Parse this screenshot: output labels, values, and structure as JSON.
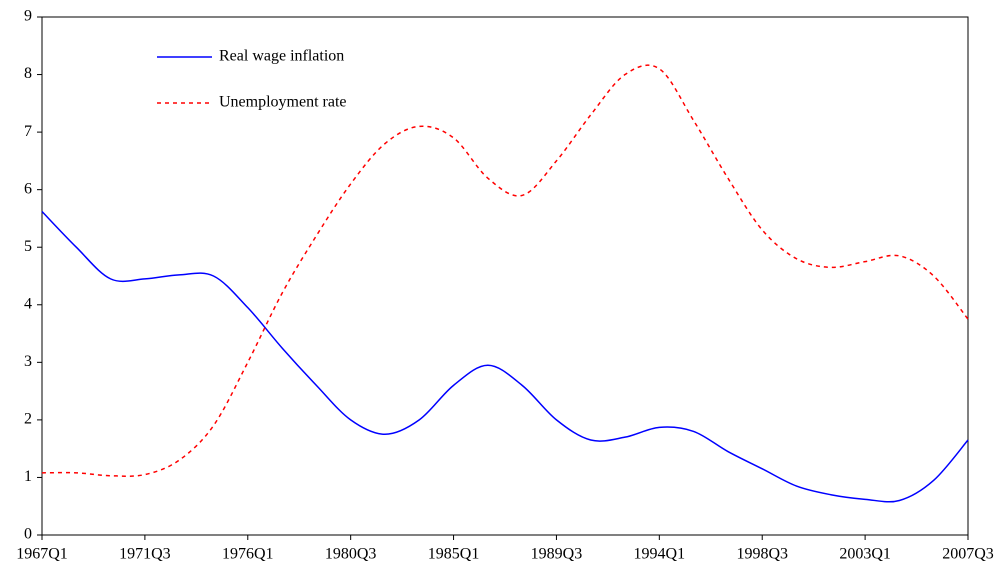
{
  "chart_data": {
    "type": "line",
    "categories": [
      "1967Q1",
      null,
      null,
      "1971Q3",
      null,
      null,
      "1976Q1",
      null,
      null,
      "1980Q3",
      null,
      null,
      "1985Q1",
      null,
      null,
      "1989Q3",
      null,
      null,
      "1994Q1",
      null,
      null,
      "1998Q3",
      null,
      null,
      "2003Q1",
      null,
      null,
      "2007Q3"
    ],
    "series": [
      {
        "name": "Real wage inflation",
        "color": "#0000ff",
        "style": "solid",
        "values": [
          5.62,
          5.0,
          4.45,
          4.45,
          4.52,
          4.5,
          3.95,
          3.25,
          2.6,
          2.0,
          1.75,
          2.0,
          2.6,
          2.95,
          2.6,
          2.0,
          1.65,
          1.7,
          1.87,
          1.8,
          1.45,
          1.15,
          0.85,
          0.7,
          0.62,
          0.6,
          0.95,
          1.65
        ]
      },
      {
        "name": "Unemployment rate",
        "color": "#ff0000",
        "style": "dotted",
        "values": [
          1.08,
          1.08,
          1.03,
          1.05,
          1.3,
          1.9,
          3.0,
          4.2,
          5.2,
          6.1,
          6.8,
          7.1,
          6.9,
          6.2,
          5.9,
          6.5,
          7.3,
          8.0,
          8.1,
          7.2,
          6.2,
          5.3,
          4.8,
          4.65,
          4.75,
          4.85,
          4.5,
          3.75
        ]
      }
    ],
    "ylim": [
      0,
      9
    ],
    "yticks": [
      0,
      1,
      2,
      3,
      4,
      5,
      6,
      7,
      8,
      9
    ],
    "grid": false,
    "legend": "upper left"
  }
}
